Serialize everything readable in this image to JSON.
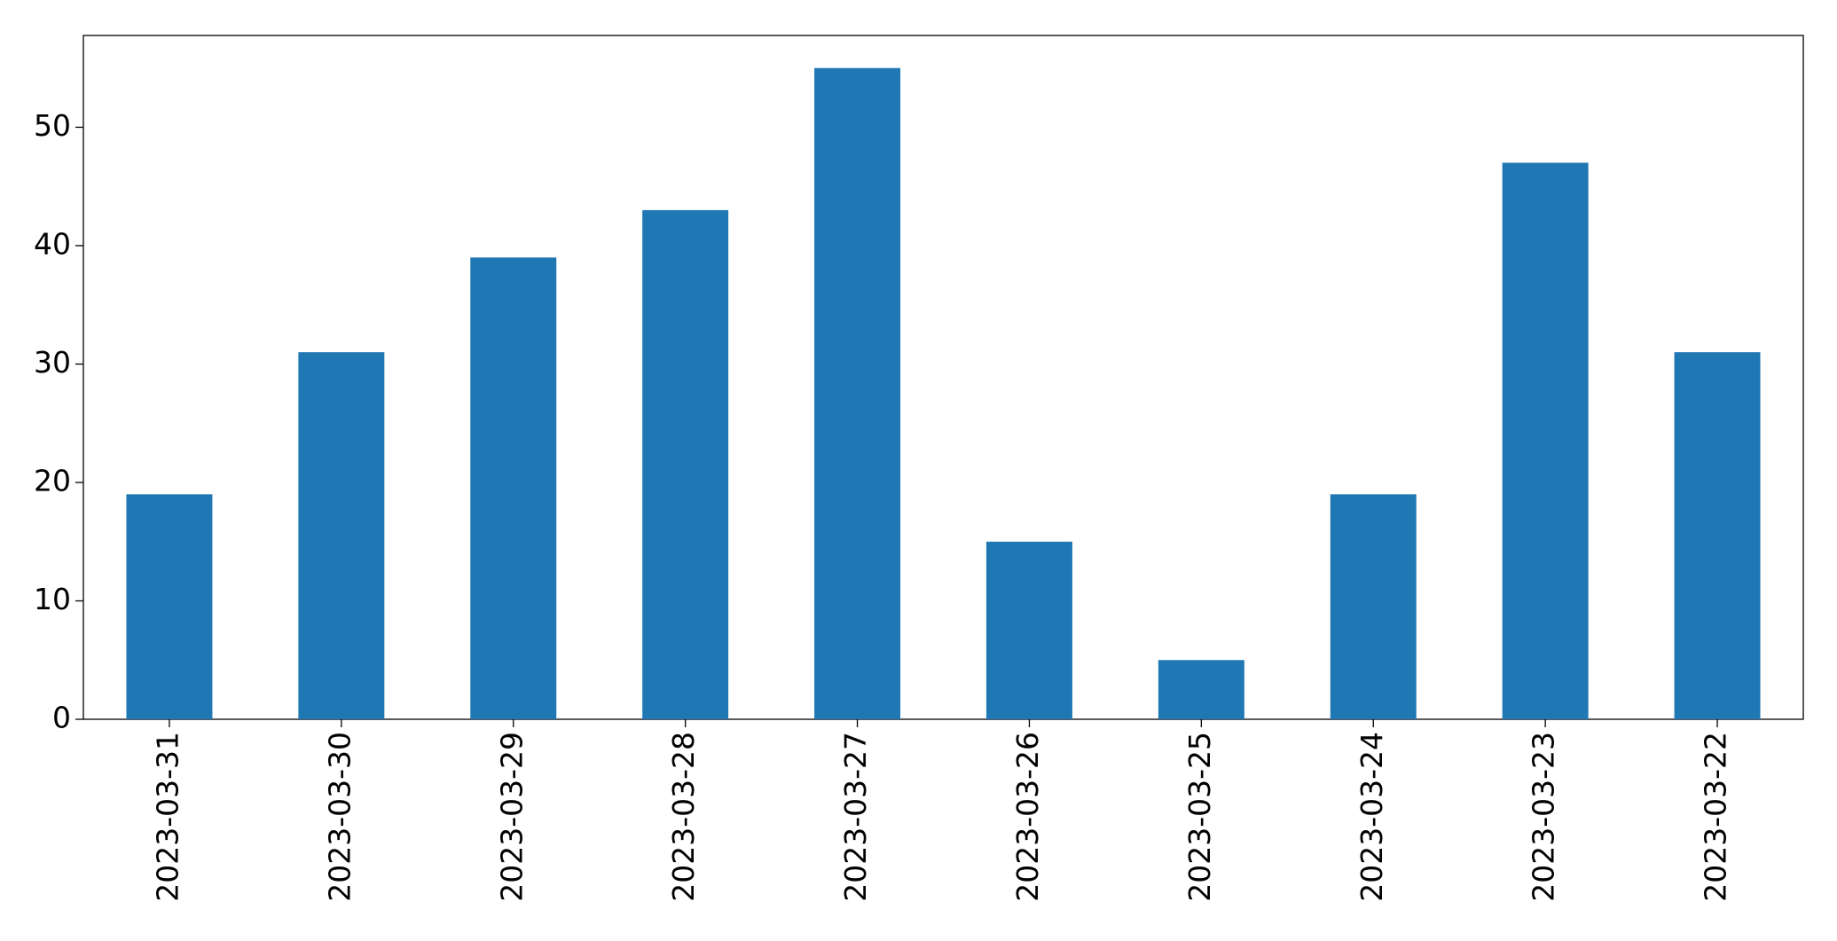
{
  "chart_data": {
    "type": "bar",
    "categories": [
      "2023-03-31",
      "2023-03-30",
      "2023-03-29",
      "2023-03-28",
      "2023-03-27",
      "2023-03-26",
      "2023-03-25",
      "2023-03-24",
      "2023-03-23",
      "2023-03-22"
    ],
    "values": [
      19,
      31,
      39,
      43,
      55,
      15,
      5,
      19,
      47,
      31
    ],
    "color": "#1f77b4",
    "ylim": [
      0,
      57.75
    ],
    "yticks": [
      0,
      10,
      20,
      30,
      40,
      50
    ],
    "grid": false
  }
}
